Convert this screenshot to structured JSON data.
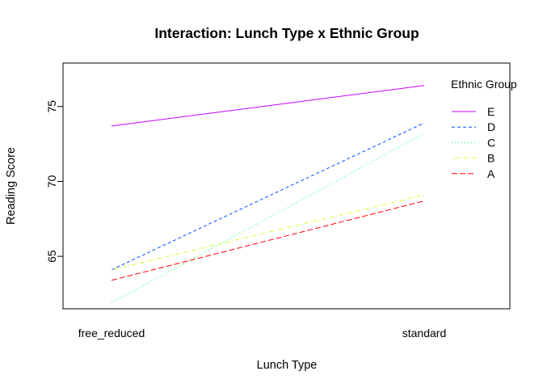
{
  "chart_data": {
    "type": "line",
    "title": "Interaction: Lunch Type x Ethnic Group",
    "xlabel": "Lunch Type",
    "ylabel": "Reading Score",
    "categories": [
      "free_reduced",
      "standard"
    ],
    "y_ticks": [
      65,
      70,
      75
    ],
    "ylim": [
      61.5,
      77.9
    ],
    "grid": false,
    "legend": {
      "title": "Ethnic Group",
      "placement": "top-right",
      "order": [
        "E",
        "D",
        "C",
        "B",
        "A"
      ]
    },
    "series": [
      {
        "name": "E",
        "values": [
          73.7,
          76.4
        ],
        "color": "#CC00FF",
        "dash": "solid"
      },
      {
        "name": "D",
        "values": [
          64.1,
          73.9
        ],
        "color": "#0050FF",
        "dash": "dashed"
      },
      {
        "name": "C",
        "values": [
          61.9,
          73.2
        ],
        "color": "#00FF66",
        "dash": "dotted"
      },
      {
        "name": "B",
        "values": [
          64.1,
          69.1
        ],
        "color": "#CCFF00",
        "dash": "dotdash"
      },
      {
        "name": "A",
        "values": [
          63.4,
          68.7
        ],
        "color": "#FF0000",
        "dash": "longdash"
      }
    ]
  }
}
